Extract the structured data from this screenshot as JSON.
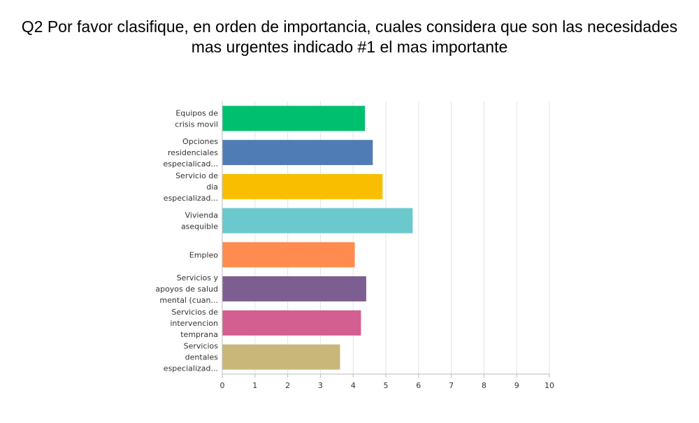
{
  "chart_data": {
    "type": "bar",
    "orientation": "horizontal",
    "title_lines": [
      "Q2 Por favor clasifique, en orden de importancia, cuales considera que son las necesidades",
      "mas urgentes indicado #1 el mas importante"
    ],
    "categories": [
      [
        "Equipos de",
        "crisis movil"
      ],
      [
        "Opciones",
        "residenciales",
        "especialicad..."
      ],
      [
        "Servicio de",
        "dia",
        "especializad..."
      ],
      [
        "Vivienda",
        "asequible"
      ],
      [
        "Empleo"
      ],
      [
        "Servicios y",
        "apoyos de salud",
        "mental (cuan..."
      ],
      [
        "Servicios de",
        "intervencion",
        "temprana"
      ],
      [
        "Servicios",
        "dentales",
        "especializad..."
      ]
    ],
    "values": [
      4.36,
      4.6,
      4.9,
      5.82,
      4.05,
      4.4,
      4.24,
      3.6
    ],
    "colors": [
      "#00bf6f",
      "#507cb6",
      "#f9be00",
      "#6bc8cd",
      "#ff8b4f",
      "#7d5e90",
      "#d25f90",
      "#c9b77a"
    ],
    "xlim": [
      0,
      10
    ],
    "xticks": [
      "0",
      "1",
      "2",
      "3",
      "4",
      "5",
      "6",
      "7",
      "8",
      "9",
      "10"
    ],
    "xlabel": "",
    "ylabel": "",
    "grid": true
  }
}
